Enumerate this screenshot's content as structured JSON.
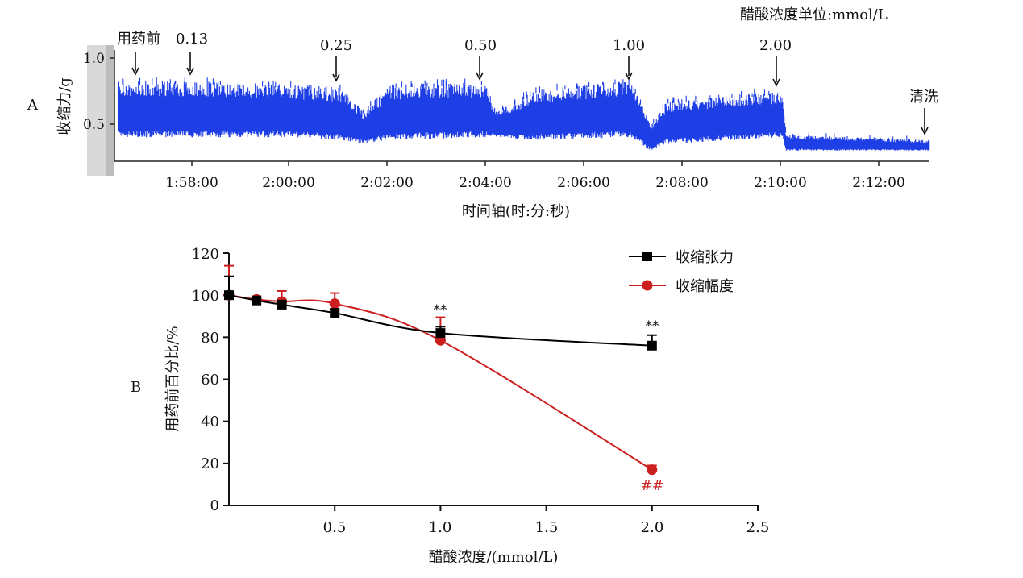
{
  "panel_a_label": "A",
  "panel_b_label": "B",
  "chart_data": [
    {
      "type": "line",
      "panel": "A",
      "unit_note": "醋酸浓度单位:mmol/L",
      "xlabel": "时间轴(时:分:秒)",
      "ylabel": "收缩力/g",
      "y_ticks": [
        "1.0",
        "0.5"
      ],
      "x_ticks": [
        "1:58:00",
        "2:00:00",
        "2:02:00",
        "2:04:00",
        "2:06:00",
        "2:08:00",
        "2:10:00",
        "2:12:00"
      ],
      "ylim": [
        0.2,
        1.05
      ],
      "annotations": [
        {
          "label": "用药前",
          "t": "1:56:50"
        },
        {
          "label": "0.13",
          "t": "1:58:05"
        },
        {
          "label": "0.25",
          "t": "2:01:10"
        },
        {
          "label": "0.50",
          "t": "2:04:05"
        },
        {
          "label": "1.00",
          "t": "2:07:00"
        },
        {
          "label": "2.00",
          "t": "2:10:05"
        },
        {
          "label": "清洗",
          "t": "2:13:00"
        }
      ],
      "trace_envelope": [
        {
          "t": "1:56:30",
          "min": 0.4,
          "max": 0.82
        },
        {
          "t": "1:58:00",
          "min": 0.4,
          "max": 0.83
        },
        {
          "t": "2:00:00",
          "min": 0.4,
          "max": 0.8
        },
        {
          "t": "2:01:00",
          "min": 0.38,
          "max": 0.78
        },
        {
          "t": "2:01:30",
          "min": 0.35,
          "max": 0.6
        },
        {
          "t": "2:02:00",
          "min": 0.38,
          "max": 0.8
        },
        {
          "t": "2:04:00",
          "min": 0.4,
          "max": 0.82
        },
        {
          "t": "2:04:10",
          "min": 0.4,
          "max": 0.6
        },
        {
          "t": "2:05:00",
          "min": 0.38,
          "max": 0.76
        },
        {
          "t": "2:06:55",
          "min": 0.4,
          "max": 0.84
        },
        {
          "t": "2:07:20",
          "min": 0.3,
          "max": 0.5
        },
        {
          "t": "2:07:40",
          "min": 0.35,
          "max": 0.68
        },
        {
          "t": "2:10:00",
          "min": 0.4,
          "max": 0.75
        },
        {
          "t": "2:10:05",
          "min": 0.3,
          "max": 0.42
        },
        {
          "t": "2:13:00",
          "min": 0.3,
          "max": 0.38
        }
      ]
    },
    {
      "type": "line",
      "panel": "B",
      "xlabel": "醋酸浓度/(mmol/L)",
      "ylabel": "用药前百分比/%",
      "xlim": [
        0,
        2.5
      ],
      "ylim": [
        0,
        120
      ],
      "x_ticks": [
        "0.5",
        "1.0",
        "1.5",
        "2.0",
        "2.5"
      ],
      "y_ticks": [
        "0",
        "20",
        "40",
        "60",
        "80",
        "100",
        "120"
      ],
      "legend_position": "top-right",
      "series": [
        {
          "name": "收缩张力",
          "color": "#000000",
          "marker": "square",
          "x": [
            0,
            0.13,
            0.25,
            0.5,
            1.0,
            2.0
          ],
          "y": [
            100,
            97.5,
            95.5,
            91.5,
            82,
            76
          ],
          "err": [
            9,
            1.5,
            1.5,
            2,
            3,
            5
          ],
          "annotations": [
            {
              "x": 1.0,
              "text": "**"
            },
            {
              "x": 2.0,
              "text": "**"
            }
          ]
        },
        {
          "name": "收缩幅度",
          "color": "#cc1f1f",
          "marker": "circle",
          "x": [
            0,
            0.13,
            0.25,
            0.5,
            1.0,
            2.0
          ],
          "y": [
            100,
            98,
            97,
            96,
            78.5,
            17
          ],
          "err": [
            14,
            1.5,
            5,
            5,
            11,
            2
          ],
          "annotations": [
            {
              "x": 2.0,
              "text": "##"
            }
          ]
        }
      ]
    }
  ]
}
